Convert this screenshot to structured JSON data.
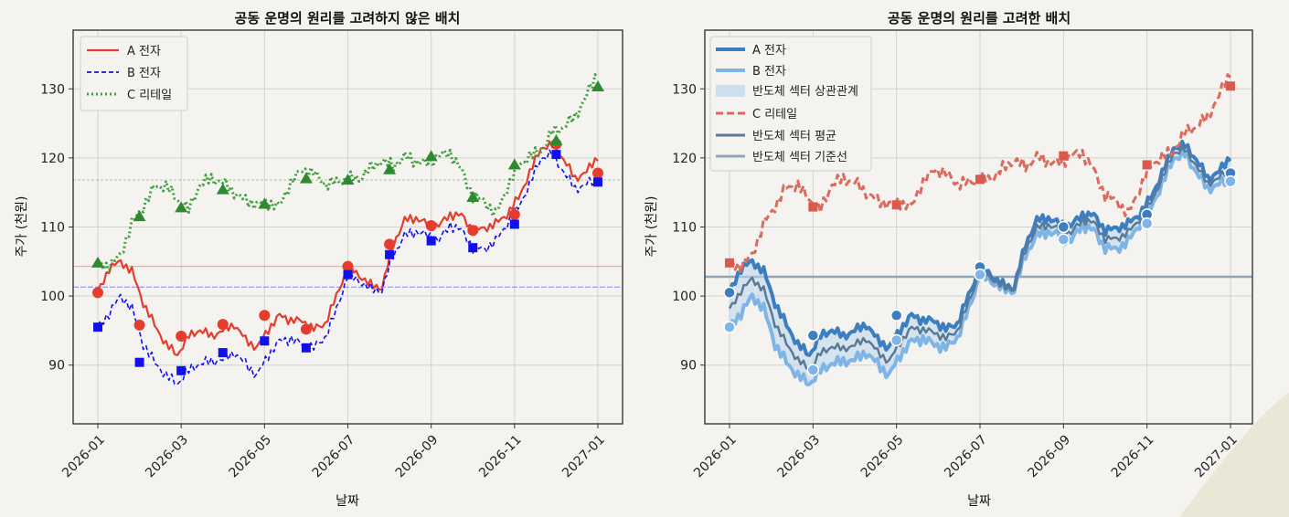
{
  "colors": {
    "background": "#f4f3ef",
    "a_left": "#e63c2e",
    "b_left": "#1010ee",
    "c_left": "#3f9d3f",
    "a_right": "#3c7ebf",
    "b_right": "#7fb5e6",
    "band_right": "#bcd6ee",
    "c_right": "#dc6a5e",
    "sector_avg": "#5b7a96",
    "sector_baseline": "#8fa5ba"
  },
  "chart_data": [
    {
      "type": "line",
      "title": "공동 운명의 원리를 고려하지 않은 배치",
      "xlabel": "날짜",
      "ylabel": "주가 (천원)",
      "x_ticks": [
        "2026-01",
        "2026-03",
        "2026-05",
        "2026-07",
        "2026-09",
        "2026-11",
        "2027-01"
      ],
      "y_ticks": [
        90,
        100,
        110,
        120,
        130
      ],
      "ylim": [
        81.5,
        138.5
      ],
      "grid": true,
      "legend_position": "top-left",
      "legend": [
        "A 전자",
        "B 전자",
        "C 리테일"
      ],
      "series": [
        {
          "name": "A 전자",
          "style": "solid",
          "marker": "circle",
          "mean_line": 104.3,
          "values": [
            100.5,
            104.0,
            105.0,
            103.6,
            99.0,
            95.8,
            93.0,
            91.5,
            94.2,
            95.1,
            94.2,
            95.0,
            95.9,
            93.7,
            92.5,
            95.2,
            97.2,
            96.5,
            96.4,
            95.2,
            96.0,
            100.0,
            104.3,
            103.0,
            101.6,
            101.2,
            107.5,
            111.0,
            111.3,
            110.4,
            110.2,
            111.8,
            111.7,
            109.5,
            109.8,
            110.5,
            111.8,
            114.2,
            117.8,
            121.5,
            121.8,
            119.8,
            117.0,
            118.0,
            120.2
          ],
          "markers": [
            100.5,
            95.8,
            94.2,
            95.9,
            97.2,
            95.2,
            104.3,
            107.5,
            110.2,
            109.5,
            111.8,
            122.0,
            117.8
          ]
        },
        {
          "name": "B 전자",
          "style": "dashed",
          "marker": "square",
          "mean_line": 101.3,
          "values": [
            95.5,
            97.5,
            100.0,
            98.2,
            93.0,
            90.4,
            88.5,
            87.3,
            89.2,
            90.3,
            90.5,
            90.8,
            91.8,
            90.2,
            88.5,
            91.5,
            93.5,
            93.8,
            93.0,
            92.5,
            94.0,
            98.0,
            103.1,
            102.2,
            101.0,
            100.8,
            106.0,
            108.8,
            109.3,
            108.8,
            108.0,
            110.3,
            109.5,
            107.0,
            106.8,
            107.9,
            110.4,
            112.8,
            116.2,
            120.0,
            120.5,
            118.0,
            115.5,
            116.2,
            117.0
          ],
          "markers": [
            95.5,
            90.4,
            89.2,
            91.8,
            93.5,
            92.5,
            103.1,
            106.0,
            108.0,
            107.0,
            110.4,
            120.5,
            116.5
          ]
        },
        {
          "name": "C 리테일",
          "style": "dotted",
          "marker": "triangle",
          "mean_line": 116.8,
          "values": [
            104.7,
            104.3,
            106.0,
            110.5,
            113.0,
            115.8,
            116.0,
            114.0,
            112.5,
            116.2,
            117.0,
            116.5,
            115.0,
            113.8,
            113.3,
            113.5,
            113.0,
            116.5,
            118.3,
            117.8,
            116.2,
            116.5,
            117.0,
            117.0,
            118.5,
            119.6,
            118.8,
            120.2,
            119.5,
            119.2,
            120.3,
            120.7,
            118.2,
            114.5,
            113.8,
            111.8,
            115.5,
            118.9,
            120.2,
            121.0,
            123.8,
            124.5,
            126.0,
            129.0,
            132.5
          ],
          "markers": [
            104.8,
            111.5,
            112.8,
            115.4,
            113.3,
            117.0,
            116.8,
            118.3,
            120.2,
            114.3,
            119.0,
            122.5,
            130.3
          ]
        }
      ]
    },
    {
      "type": "line",
      "title": "공동 운명의 원리를 고려한 배치",
      "xlabel": "날짜",
      "ylabel": "주가 (천원)",
      "x_ticks": [
        "2026-01",
        "2026-03",
        "2026-05",
        "2026-07",
        "2026-09",
        "2026-11",
        "2027-01"
      ],
      "y_ticks": [
        90,
        100,
        110,
        120,
        130
      ],
      "ylim": [
        81.5,
        138.5
      ],
      "grid": true,
      "legend_position": "top-left",
      "legend": [
        "A 전자",
        "B 전자",
        "반도체 섹터 상관관계",
        "C 리테일",
        "반도체 섹터 평균",
        "반도체 섹터 기준선"
      ],
      "sector_baseline_value": 102.8,
      "series": [
        {
          "name": "A 전자",
          "style": "solid",
          "marker": "circle",
          "values": [
            100.5,
            104.0,
            105.0,
            103.6,
            99.0,
            95.8,
            93.0,
            91.5,
            94.2,
            95.1,
            94.2,
            95.0,
            95.9,
            93.7,
            92.5,
            95.2,
            97.2,
            96.5,
            96.4,
            95.2,
            96.0,
            100.0,
            104.3,
            103.0,
            101.6,
            101.2,
            107.5,
            111.0,
            111.3,
            110.4,
            110.2,
            111.8,
            111.7,
            109.5,
            109.8,
            110.5,
            111.8,
            114.2,
            117.8,
            121.5,
            121.8,
            119.8,
            117.0,
            118.0,
            120.2
          ],
          "markers": [
            100.5,
            94.3,
            97.2,
            104.2,
            110.0,
            111.8,
            117.8
          ]
        },
        {
          "name": "B 전자",
          "style": "solid",
          "marker": "circle",
          "values": [
            95.5,
            97.5,
            100.0,
            98.2,
            93.0,
            90.4,
            88.5,
            87.3,
            89.2,
            90.3,
            90.5,
            90.8,
            91.8,
            90.2,
            88.5,
            91.5,
            93.5,
            93.8,
            93.0,
            92.5,
            94.0,
            98.0,
            103.1,
            102.2,
            101.0,
            100.8,
            106.0,
            108.8,
            109.3,
            108.8,
            108.0,
            110.3,
            109.5,
            107.0,
            106.8,
            107.9,
            110.4,
            112.8,
            116.2,
            120.0,
            120.5,
            118.0,
            115.5,
            116.2,
            117.0
          ],
          "markers": [
            95.5,
            89.3,
            93.6,
            103.1,
            108.2,
            110.5,
            116.6
          ]
        },
        {
          "name": "C 리테일",
          "style": "dashed",
          "marker": "square",
          "values": [
            104.7,
            104.3,
            106.0,
            110.5,
            113.0,
            115.8,
            116.0,
            114.0,
            112.5,
            116.2,
            117.0,
            116.5,
            115.0,
            113.8,
            113.3,
            113.5,
            113.0,
            116.5,
            118.3,
            117.8,
            116.2,
            116.5,
            117.0,
            117.0,
            118.5,
            119.6,
            118.8,
            120.2,
            119.5,
            119.2,
            120.3,
            120.7,
            118.2,
            114.5,
            113.8,
            111.8,
            115.5,
            118.9,
            120.2,
            121.0,
            123.8,
            124.5,
            126.0,
            129.0,
            132.5
          ],
          "markers": [
            104.8,
            112.9,
            113.2,
            116.9,
            120.3,
            119.0,
            130.4
          ]
        }
      ]
    }
  ]
}
